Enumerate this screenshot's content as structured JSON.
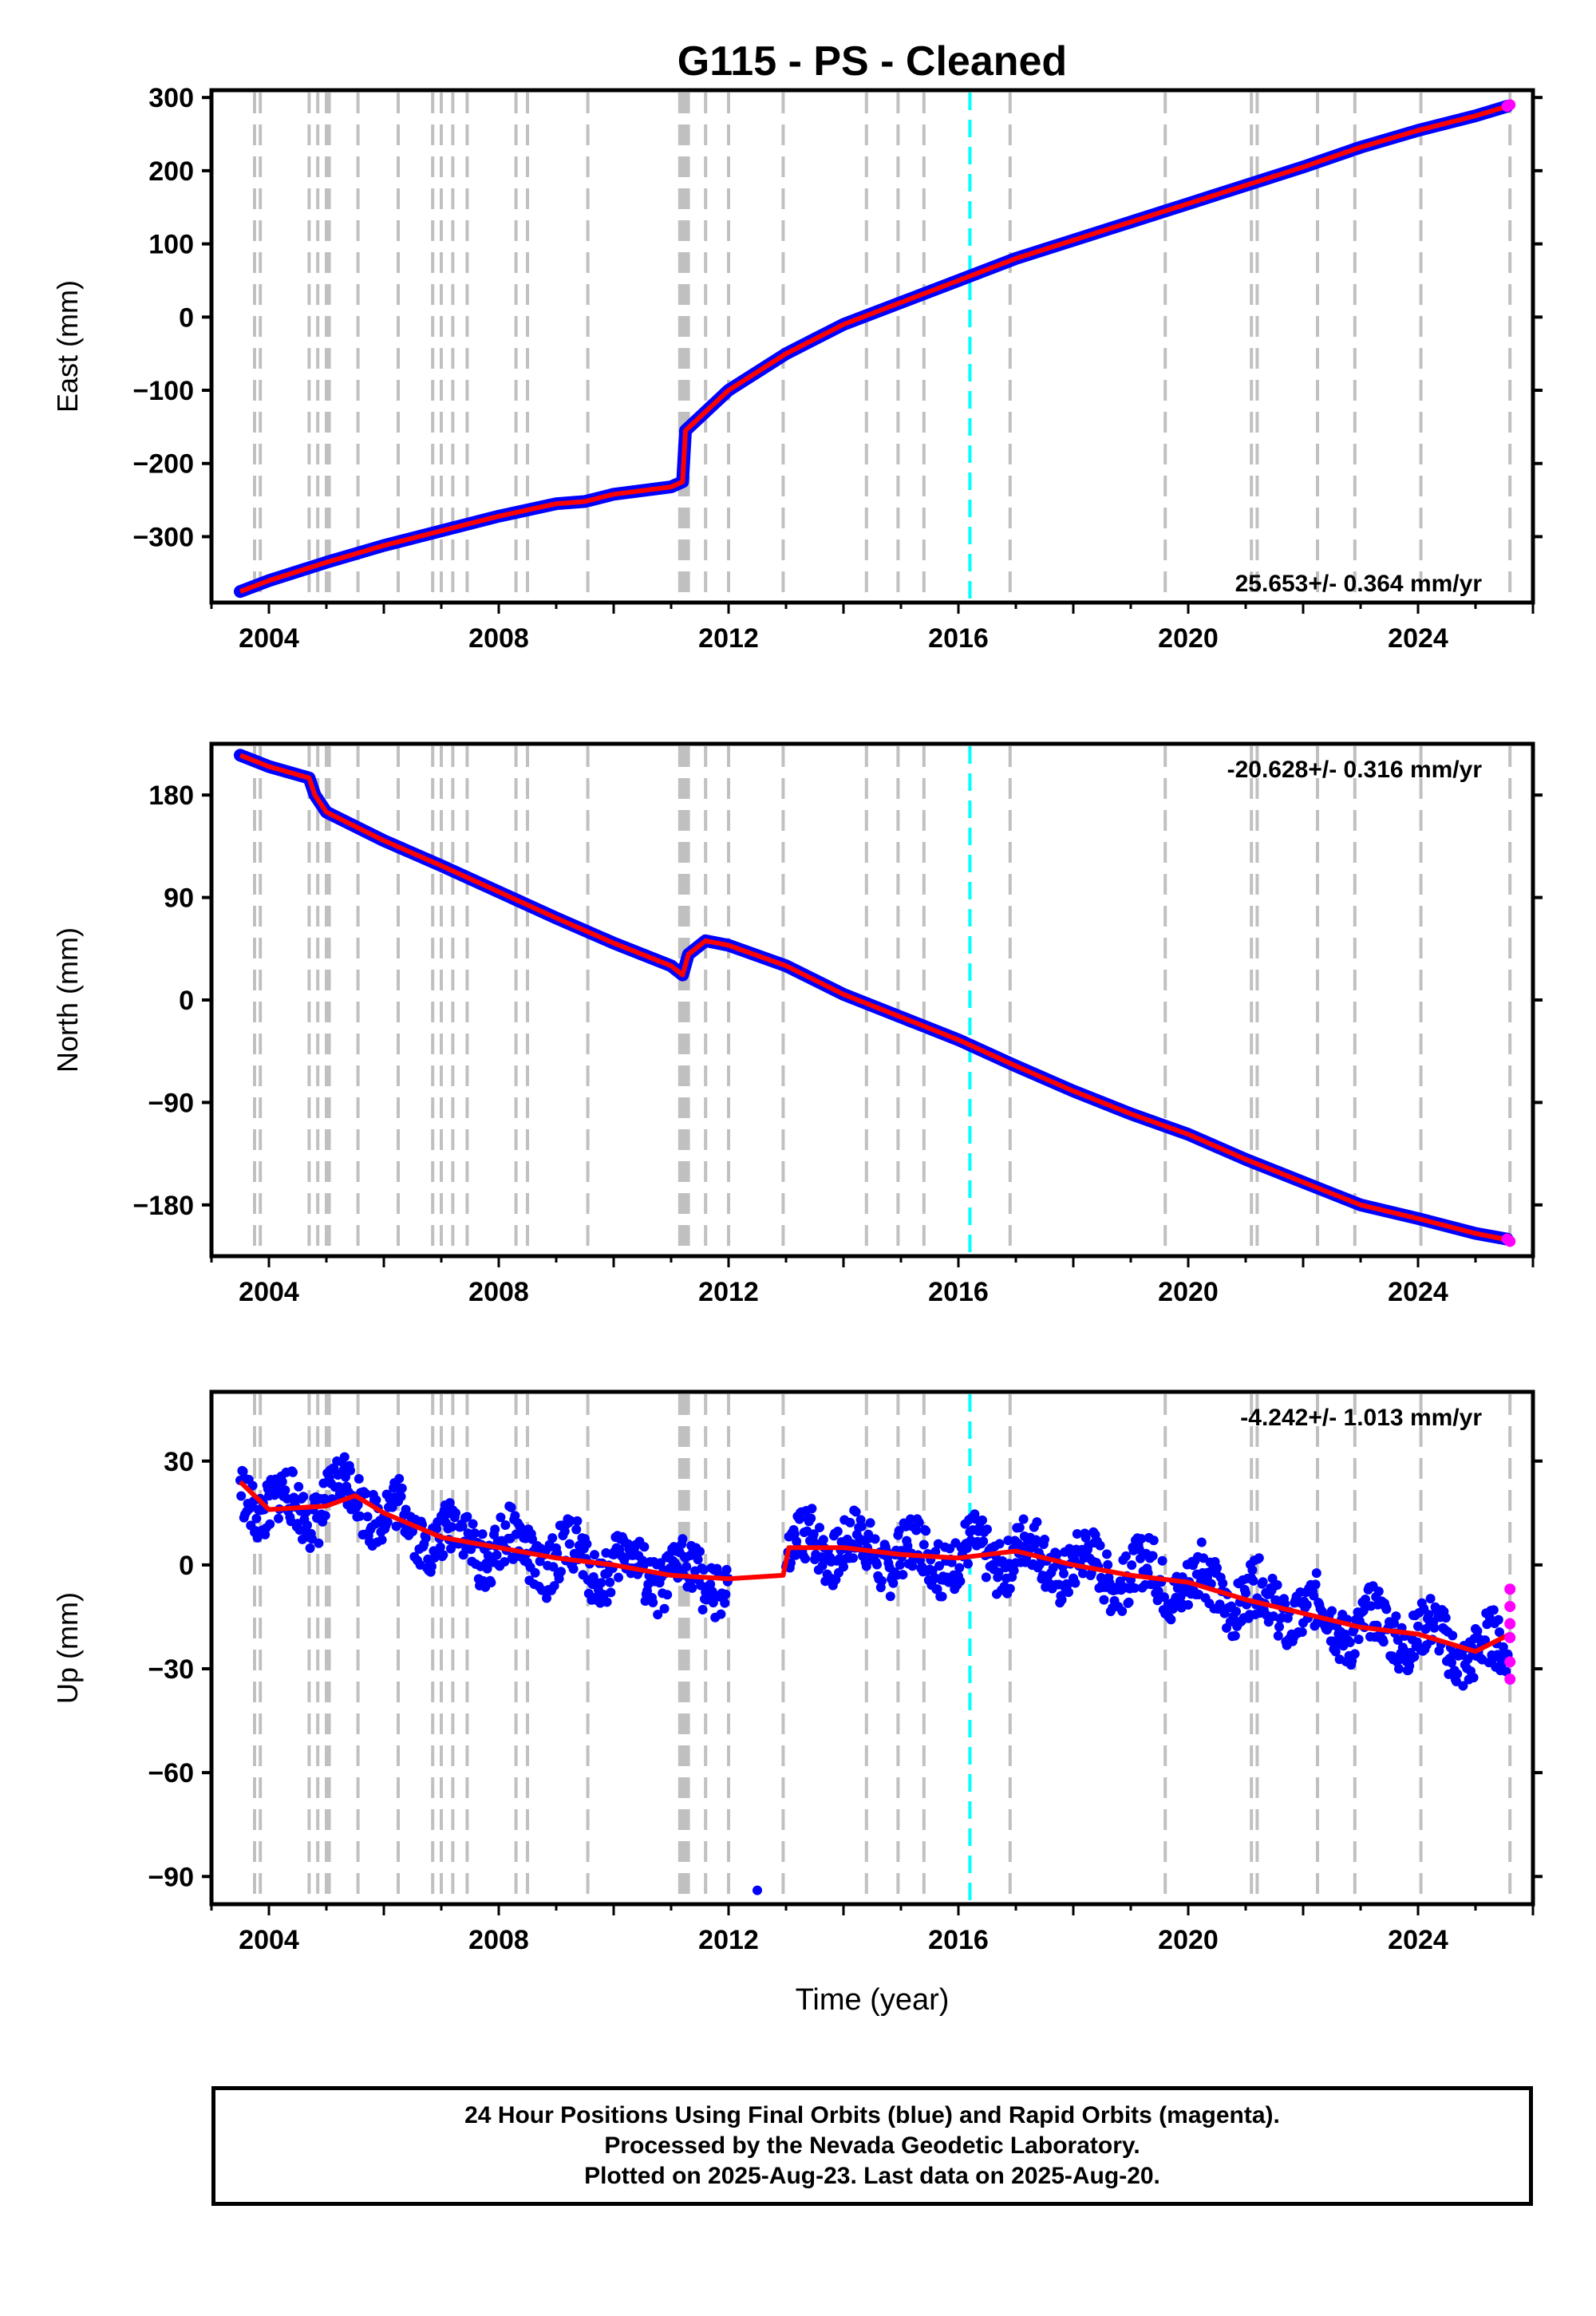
{
  "title": "G115  - PS - Cleaned",
  "xlabel": "Time (year)",
  "colors": {
    "final_orbits": "#0000ff",
    "rapid_orbits": "#ff00ff",
    "model_fit": "#ff0000",
    "event_lines": "#c0c0c0",
    "highlight_line": "#00ffff",
    "frame": "#000000"
  },
  "footer": {
    "line1": "24 Hour Positions Using Final Orbits (blue) and Rapid Orbits (magenta).",
    "line2": "Processed by the Nevada Geodetic Laboratory.",
    "line3": "Plotted on 2025-Aug-23. Last data on 2025-Aug-20."
  },
  "chart_data": [
    {
      "type": "scatter",
      "ylabel": "East (mm)",
      "rate_label": "25.653+/- 0.364 mm/yr",
      "xlim": [
        2003.0,
        2026.0
      ],
      "ylim": [
        -390,
        310
      ],
      "yticks": [
        300,
        200,
        100,
        0,
        -100,
        -200,
        -300
      ],
      "xticks": [
        2004,
        2008,
        2012,
        2016,
        2020,
        2024
      ],
      "series_final": {
        "name": "Final Orbits",
        "x": [
          2003.5,
          2004.0,
          2005.0,
          2006.0,
          2007.0,
          2008.0,
          2009.0,
          2009.5,
          2010.0,
          2011.0,
          2011.2,
          2011.25,
          2012.0,
          2013.0,
          2014.0,
          2015.0,
          2016.0,
          2017.0,
          2018.0,
          2019.0,
          2020.0,
          2021.0,
          2022.0,
          2023.0,
          2024.0,
          2025.0,
          2025.55
        ],
        "y": [
          -375,
          -360,
          -335,
          -312,
          -292,
          -272,
          -255,
          -252,
          -242,
          -232,
          -225,
          -155,
          -100,
          -50,
          -10,
          20,
          50,
          80,
          105,
          130,
          155,
          180,
          205,
          232,
          255,
          275,
          288
        ]
      },
      "series_rapid": {
        "name": "Rapid Orbits",
        "x": [
          2025.55,
          2025.6
        ],
        "y": [
          288,
          290
        ]
      },
      "model": {
        "x": [
          2003.5,
          2004.0,
          2005.0,
          2006.0,
          2007.0,
          2008.0,
          2009.0,
          2009.5,
          2010.0,
          2011.0,
          2011.2,
          2011.25,
          2012.0,
          2013.0,
          2014.0,
          2015.0,
          2016.0,
          2017.0,
          2018.0,
          2019.0,
          2020.0,
          2021.0,
          2022.0,
          2023.0,
          2024.0,
          2025.0,
          2025.6
        ],
        "y": [
          -375,
          -360,
          -335,
          -312,
          -292,
          -272,
          -255,
          -252,
          -242,
          -232,
          -225,
          -155,
          -100,
          -50,
          -10,
          20,
          50,
          80,
          105,
          130,
          155,
          180,
          205,
          232,
          255,
          275,
          289
        ]
      }
    },
    {
      "type": "scatter",
      "ylabel": "North (mm)",
      "rate_label": "-20.628+/- 0.316 mm/yr",
      "xlim": [
        2003.0,
        2026.0
      ],
      "ylim": [
        -225,
        225
      ],
      "yticks": [
        180,
        90,
        0,
        -90,
        -180
      ],
      "xticks": [
        2004,
        2008,
        2012,
        2016,
        2020,
        2024
      ],
      "series_final": {
        "name": "Final Orbits",
        "x": [
          2003.5,
          2004.0,
          2004.7,
          2004.8,
          2005.0,
          2006.0,
          2007.0,
          2008.0,
          2009.0,
          2010.0,
          2011.0,
          2011.2,
          2011.3,
          2011.6,
          2012.0,
          2013.0,
          2014.0,
          2015.0,
          2016.0,
          2017.0,
          2018.0,
          2019.0,
          2020.0,
          2021.0,
          2022.0,
          2023.0,
          2024.0,
          2025.0,
          2025.55
        ],
        "y": [
          215,
          205,
          195,
          180,
          165,
          140,
          118,
          95,
          72,
          50,
          30,
          22,
          40,
          52,
          48,
          30,
          5,
          -15,
          -35,
          -58,
          -80,
          -100,
          -118,
          -140,
          -160,
          -180,
          -192,
          -205,
          -210
        ]
      },
      "series_rapid": {
        "name": "Rapid Orbits",
        "x": [
          2025.55,
          2025.6
        ],
        "y": [
          -210,
          -212
        ]
      },
      "model": {
        "x": [
          2003.5,
          2004.0,
          2004.7,
          2004.8,
          2005.0,
          2006.0,
          2007.0,
          2008.0,
          2009.0,
          2010.0,
          2011.0,
          2011.2,
          2011.3,
          2011.6,
          2012.0,
          2013.0,
          2014.0,
          2015.0,
          2016.0,
          2017.0,
          2018.0,
          2019.0,
          2020.0,
          2021.0,
          2022.0,
          2023.0,
          2024.0,
          2025.0,
          2025.6
        ],
        "y": [
          215,
          205,
          195,
          180,
          165,
          140,
          118,
          95,
          72,
          50,
          30,
          22,
          40,
          52,
          48,
          30,
          5,
          -15,
          -35,
          -58,
          -80,
          -100,
          -118,
          -140,
          -160,
          -180,
          -192,
          -205,
          -211
        ]
      }
    },
    {
      "type": "scatter",
      "ylabel": "Up (mm)",
      "rate_label": "-4.242+/- 1.013 mm/yr",
      "xlim": [
        2003.0,
        2026.0
      ],
      "ylim": [
        -98,
        50
      ],
      "yticks": [
        30,
        0,
        -30,
        -60,
        -90
      ],
      "xticks": [
        2004,
        2008,
        2012,
        2016,
        2020,
        2024
      ],
      "series_final": {
        "name": "Final Orbits",
        "x": [
          2003.5,
          2004.0,
          2005.0,
          2005.5,
          2006.0,
          2007.0,
          2008.0,
          2009.0,
          2010.0,
          2011.0,
          2012.0,
          2012.5,
          2013.0,
          2013.5,
          2014.0,
          2015.0,
          2016.0,
          2017.0,
          2018.0,
          2019.0,
          2020.0,
          2021.0,
          2022.0,
          2023.0,
          2024.0,
          2025.0,
          2025.55
        ],
        "y": [
          24,
          16,
          18,
          22,
          15,
          8,
          5,
          2,
          0,
          -3,
          -4,
          -94,
          -2,
          8,
          5,
          3,
          2,
          4,
          0,
          -3,
          -5,
          -10,
          -14,
          -18,
          -20,
          -25,
          -26
        ],
        "spread": 8
      },
      "series_rapid": {
        "name": "Rapid Orbits",
        "x": [
          2025.6,
          2025.6,
          2025.6,
          2025.6,
          2025.6,
          2025.6
        ],
        "y": [
          -7,
          -12,
          -17,
          -21,
          -28,
          -33
        ]
      },
      "model": {
        "x": [
          2003.5,
          2004.0,
          2005.0,
          2005.5,
          2006.0,
          2007.0,
          2008.0,
          2009.0,
          2010.0,
          2011.0,
          2012.0,
          2012.95,
          2013.05,
          2014.0,
          2015.0,
          2016.0,
          2017.0,
          2018.0,
          2019.0,
          2020.0,
          2021.0,
          2022.0,
          2023.0,
          2024.0,
          2025.0,
          2025.6
        ],
        "y": [
          24,
          16,
          17,
          20,
          15,
          8,
          5,
          2,
          0,
          -3,
          -4,
          -3,
          5,
          5,
          3,
          2,
          4,
          0,
          -3,
          -5,
          -10,
          -14,
          -18,
          -20,
          -25,
          -20
        ]
      }
    }
  ],
  "event_lines": [
    2003.75,
    2003.85,
    2004.7,
    2004.85,
    2005.0,
    2005.05,
    2005.55,
    2006.25,
    2006.85,
    2007.0,
    2007.2,
    2007.45,
    2008.3,
    2008.5,
    2009.55,
    2011.15,
    2011.2,
    2011.25,
    2011.3,
    2011.6,
    2012.0,
    2012.95,
    2014.4,
    2014.95,
    2015.4,
    2016.9,
    2019.6,
    2021.1,
    2021.2,
    2022.25,
    2022.9,
    2024.05,
    2025.6
  ],
  "highlight_line": 2016.2
}
